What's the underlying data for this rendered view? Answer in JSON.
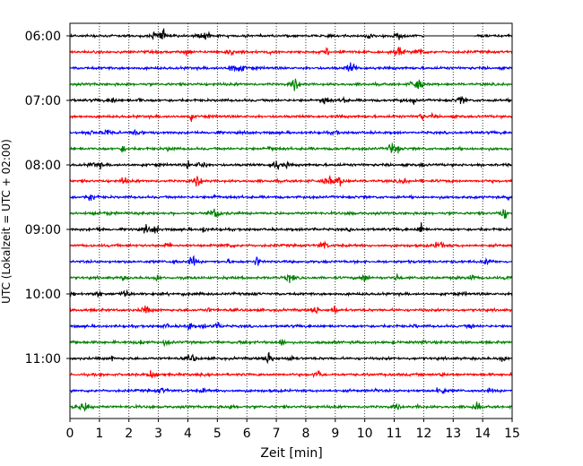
{
  "chart_data": {
    "type": "line",
    "subtype": "helicorder",
    "title": "",
    "xlabel": "Zeit  [min]",
    "ylabel": "UTC (Lokalzeit = UTC + 02:00)",
    "xlim": [
      0,
      15
    ],
    "x_ticks": [
      "0",
      "1",
      "2",
      "3",
      "4",
      "5",
      "6",
      "7",
      "8",
      "9",
      "10",
      "11",
      "12",
      "13",
      "14",
      "15"
    ],
    "y_ticks": [
      "06:00",
      "07:00",
      "08:00",
      "09:00",
      "10:00",
      "11:00"
    ],
    "x_grid": "dotted",
    "traces_per_hour": 4,
    "trace_colors": [
      "#000000",
      "#ff0000",
      "#0000ff",
      "#008000"
    ],
    "trace_count": 24,
    "first_trace_time": "06:00",
    "gap_in_first_trace_minutes": [
      12.0,
      13.7
    ]
  }
}
